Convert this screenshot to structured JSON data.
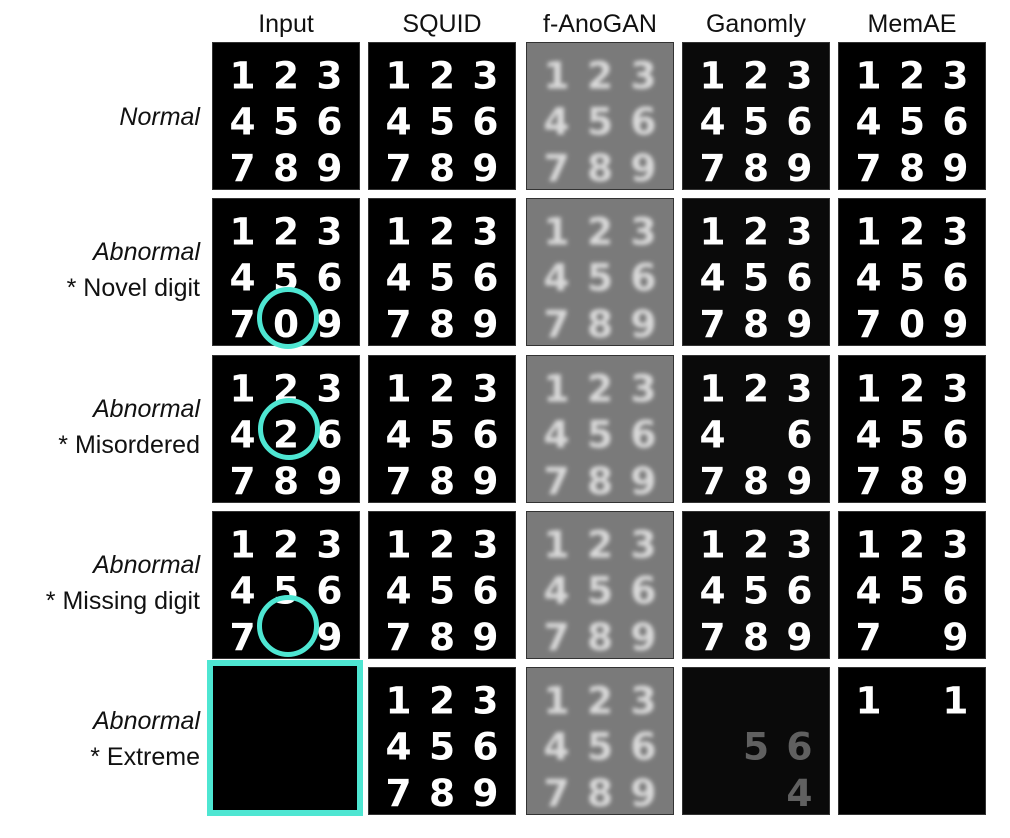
{
  "columns": [
    "Input",
    "SQUID",
    "f-AnoGAN",
    "Ganomly",
    "MemAE"
  ],
  "rows": [
    {
      "title": "Normal",
      "subtitle": ""
    },
    {
      "title": "Abnormal",
      "subtitle": "* Novel digit"
    },
    {
      "title": "Abnormal",
      "subtitle": "* Misordered"
    },
    {
      "title": "Abnormal",
      "subtitle": "* Missing digit"
    },
    {
      "title": "Abnormal",
      "subtitle": "* Extreme"
    }
  ],
  "grids": [
    [
      [
        "1",
        "2",
        "3",
        "4",
        "5",
        "6",
        "7",
        "8",
        "9"
      ],
      [
        "1",
        "2",
        "3",
        "4",
        "5",
        "6",
        "7",
        "8",
        "9"
      ],
      [
        "1",
        "2",
        "3",
        "4",
        "5",
        "6",
        "7",
        "8",
        "9"
      ],
      [
        "1",
        "2",
        "3",
        "4",
        "5",
        "6",
        "7",
        "8",
        "9"
      ],
      [
        "1",
        "2",
        "3",
        "4",
        "5",
        "6",
        "7",
        "8",
        "9"
      ]
    ],
    [
      [
        "1",
        "2",
        "3",
        "4",
        "5",
        "6",
        "7",
        "0",
        "9"
      ],
      [
        "1",
        "2",
        "3",
        "4",
        "5",
        "6",
        "7",
        "8",
        "9"
      ],
      [
        "1",
        "2",
        "3",
        "4",
        "5",
        "6",
        "7",
        "8",
        "9"
      ],
      [
        "1",
        "2",
        "3",
        "4",
        "5",
        "6",
        "7",
        "8",
        "9"
      ],
      [
        "1",
        "2",
        "3",
        "4",
        "5",
        "6",
        "7",
        "0",
        "9"
      ]
    ],
    [
      [
        "1",
        "2",
        "3",
        "4",
        "2",
        "6",
        "7",
        "8",
        "9"
      ],
      [
        "1",
        "2",
        "3",
        "4",
        "5",
        "6",
        "7",
        "8",
        "9"
      ],
      [
        "1",
        "2",
        "3",
        "4",
        "5",
        "6",
        "7",
        "8",
        "9"
      ],
      [
        "1",
        "2",
        "3",
        "4",
        "",
        "6",
        "7",
        "8",
        "9"
      ],
      [
        "1",
        "2",
        "3",
        "4",
        "5",
        "6",
        "7",
        "8",
        "9"
      ]
    ],
    [
      [
        "1",
        "2",
        "3",
        "4",
        "5",
        "6",
        "7",
        "",
        "9"
      ],
      [
        "1",
        "2",
        "3",
        "4",
        "5",
        "6",
        "7",
        "8",
        "9"
      ],
      [
        "1",
        "2",
        "3",
        "4",
        "5",
        "6",
        "7",
        "8",
        "9"
      ],
      [
        "1",
        "2",
        "3",
        "4",
        "5",
        "6",
        "7",
        "8",
        "9"
      ],
      [
        "1",
        "2",
        "3",
        "4",
        "5",
        "6",
        "7",
        "",
        "9"
      ]
    ],
    [
      [
        "",
        "",
        "",
        "",
        "",
        "",
        "",
        "",
        ""
      ],
      [
        "1",
        "2",
        "3",
        "4",
        "5",
        "6",
        "7",
        "8",
        "9"
      ],
      [
        "1",
        "2",
        "3",
        "4",
        "5",
        "6",
        "7",
        "8",
        "9"
      ],
      [
        "",
        "",
        "",
        "",
        "5",
        "6",
        "",
        "",
        "4"
      ],
      [
        "1",
        "",
        "1",
        "",
        "",
        "",
        "",
        "",
        ""
      ]
    ]
  ],
  "style": {
    "highlight_color": "#4ee6d2",
    "panel_backgrounds": [
      "#000000",
      "#000000",
      "#7a7a7a",
      "#0a0a0a",
      "#000000"
    ],
    "digit_colors": [
      "#ffffff",
      "#ffffff",
      "#d9d9d9",
      "#ffffff",
      "#ffffff"
    ]
  }
}
